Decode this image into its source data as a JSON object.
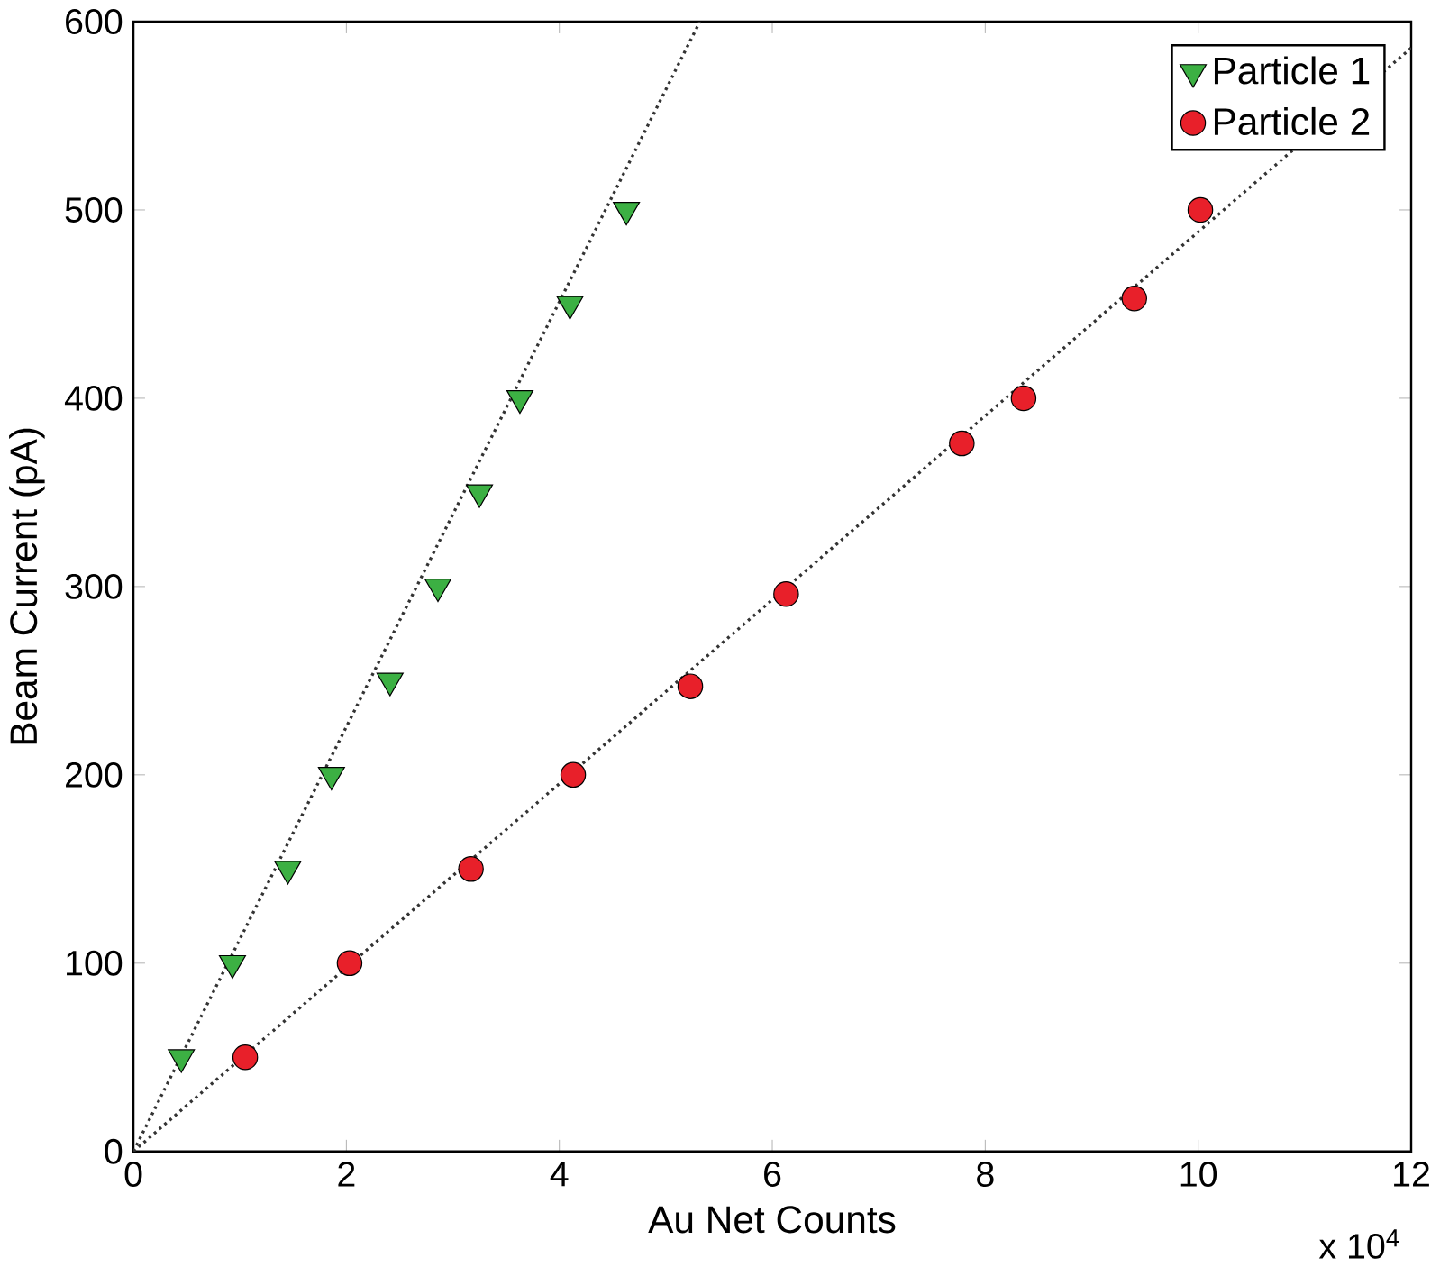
{
  "chart_data": {
    "type": "scatter",
    "xlabel": "Au Net Counts",
    "ylabel": "Beam Current (pA)",
    "xlim": [
      0,
      12
    ],
    "ylim": [
      0,
      600
    ],
    "xticks": [
      0,
      2,
      4,
      6,
      8,
      10,
      12
    ],
    "yticks": [
      0,
      100,
      200,
      300,
      400,
      500,
      600
    ],
    "annotations": [
      "x 10$^{4}$"
    ],
    "legend": "top right",
    "grid": false,
    "series": [
      {
        "name": "Particle 1",
        "color": "#3cb043",
        "marker": "triangle",
        "x": [
          0.45,
          0.93,
          1.45,
          1.86,
          2.41,
          2.86,
          3.25,
          3.63,
          4.1,
          4.63
        ],
        "values": [
          50,
          100,
          150,
          200,
          250,
          300,
          350,
          400,
          450,
          500
        ]
      },
      {
        "name": "Particle 2",
        "color": "#e8202a",
        "marker": "circle",
        "x": [
          1.05,
          2.03,
          3.17,
          4.13,
          5.23,
          6.13,
          7.78,
          8.36,
          9.4,
          10.02
        ],
        "values": [
          50,
          100,
          150,
          200,
          247,
          296,
          376,
          400,
          453,
          500
        ]
      },
      {
        "type": "line",
        "color": "#333333",
        "marker": "none",
        "line_style": "dotted",
        "x": [
          0,
          5.32
        ],
        "values": [
          0,
          600
        ]
      },
      {
        "type": "line",
        "color": "#333333",
        "marker": "none",
        "line_style": "dotted",
        "x": [
          0,
          12
        ],
        "values": [
          0,
          586
        ]
      }
    ]
  }
}
